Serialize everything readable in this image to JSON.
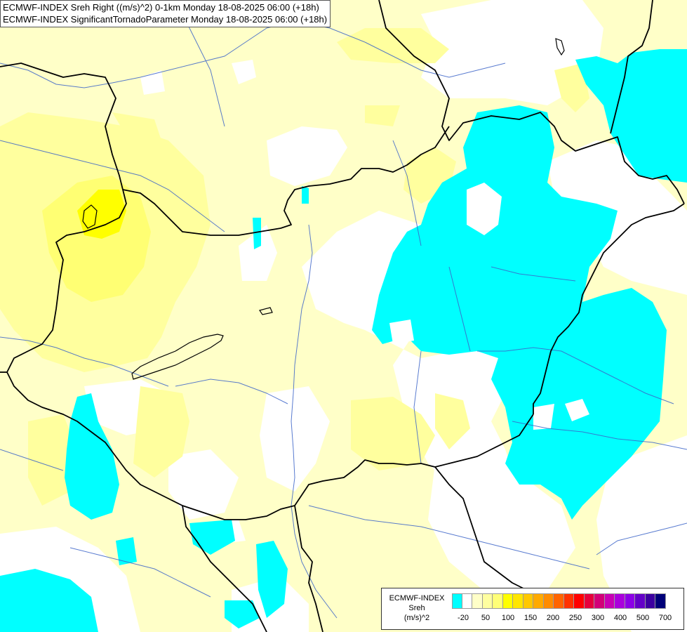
{
  "title_lines": [
    "ECMWF-INDEX Sreh Right ((m/s)^2) 0-1km Monday 18-08-2025 06:00 (+18h)",
    "ECMWF-INDEX SignificantTornadoParameter Monday 18-08-2025 06:00 (+18h)"
  ],
  "legend": {
    "model": "ECMWF-INDEX",
    "field": "Sreh",
    "unit": "(m/s)^2",
    "tick_labels": [
      "-20",
      "50",
      "100",
      "150",
      "200",
      "250",
      "300",
      "400",
      "500",
      "700"
    ],
    "swatch_colors": [
      "#00ffff",
      "#ffffff",
      "#ffffc8",
      "#ffffa0",
      "#ffff78",
      "#ffff00",
      "#ffe600",
      "#ffc800",
      "#ffaa00",
      "#ff8c00",
      "#ff6400",
      "#ff3200",
      "#ff0000",
      "#e6003c",
      "#d20078",
      "#c800b4",
      "#aa00dc",
      "#8c00e6",
      "#6400c8",
      "#3c00a0",
      "#000078"
    ]
  },
  "colors": {
    "cyan": "#00ffff",
    "pale_yellow": "#ffffc8",
    "light_yellow": "#ffff9e",
    "yellow": "#ffff73",
    "strong_yellow": "#ffff00",
    "river": "#3c64c8",
    "border": "#000000"
  }
}
